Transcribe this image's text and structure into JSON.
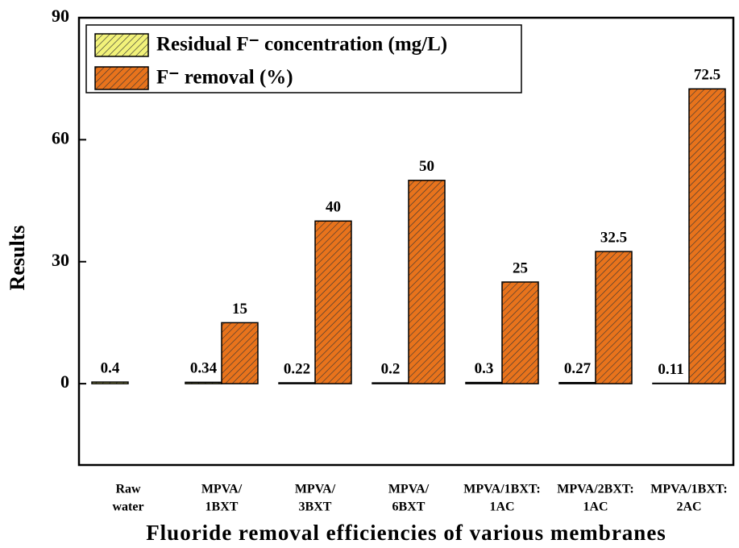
{
  "chart_data": {
    "type": "bar",
    "x_label": "Fluoride removal efficiencies of various membranes",
    "y_label": "Results",
    "categories": [
      [
        "Raw",
        "water"
      ],
      [
        "MPVA/",
        "1BXT"
      ],
      [
        "MPVA/",
        "3BXT"
      ],
      [
        "MPVA/",
        "6BXT"
      ],
      [
        "MPVA/1BXT:",
        "1AC"
      ],
      [
        "MPVA/2BXT:",
        "1AC"
      ],
      [
        "MPVA/1BXT:",
        "2AC"
      ]
    ],
    "series": [
      {
        "name": "Residual F⁻ concentration (mg/L)",
        "color": "#f2f27a",
        "values": [
          0.4,
          0.34,
          0.22,
          0.2,
          0.3,
          0.27,
          0.11
        ]
      },
      {
        "name": "F⁻ removal (%)",
        "color": "#e8731c",
        "values": [
          null,
          15,
          40,
          50,
          25,
          32.5,
          72.5
        ]
      }
    ],
    "ylim": [
      -20,
      90
    ],
    "yticks": [
      0,
      30,
      60,
      90
    ],
    "legend": "upper left"
  }
}
